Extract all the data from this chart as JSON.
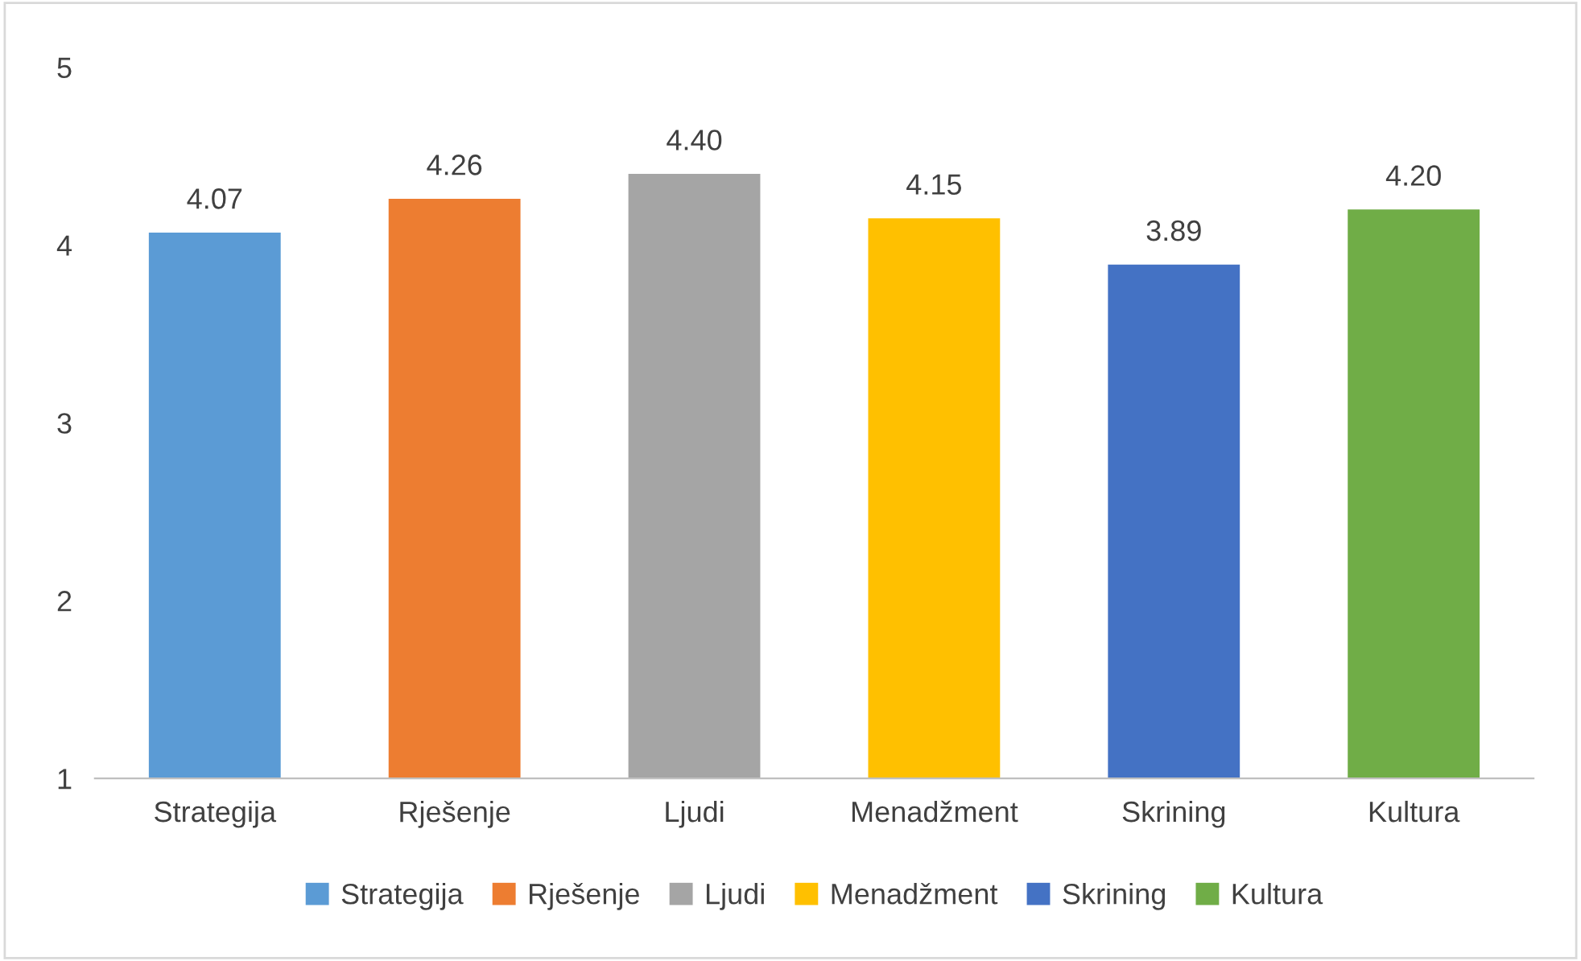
{
  "chart_data": {
    "type": "bar",
    "categories": [
      "Strategija",
      "Rješenje",
      "Ljudi",
      "Menadžment",
      "Skrining",
      "Kultura"
    ],
    "series": [
      {
        "name": "Strategija",
        "color": "#5b9bd5",
        "values": [
          4.07,
          null,
          null,
          null,
          null,
          null
        ]
      },
      {
        "name": "Rješenje",
        "color": "#ed7d31",
        "values": [
          null,
          4.26,
          null,
          null,
          null,
          null
        ]
      },
      {
        "name": "Ljudi",
        "color": "#a5a5a5",
        "values": [
          null,
          null,
          4.4,
          null,
          null,
          null
        ]
      },
      {
        "name": "Menadžment",
        "color": "#ffc000",
        "values": [
          null,
          null,
          null,
          4.15,
          null,
          null
        ]
      },
      {
        "name": "Skrining",
        "color": "#4472c4",
        "values": [
          null,
          null,
          null,
          null,
          3.89,
          null
        ]
      },
      {
        "name": "Kultura",
        "color": "#70ad47",
        "values": [
          null,
          null,
          null,
          null,
          null,
          4.2
        ]
      }
    ],
    "value_labels": [
      "4.07",
      "4.26",
      "4.40",
      "4.15",
      "3.89",
      "4.20"
    ],
    "ylim": [
      1,
      5
    ],
    "yticks": [
      1,
      2,
      3,
      4,
      5
    ],
    "grid": false,
    "legend": "bottom"
  }
}
